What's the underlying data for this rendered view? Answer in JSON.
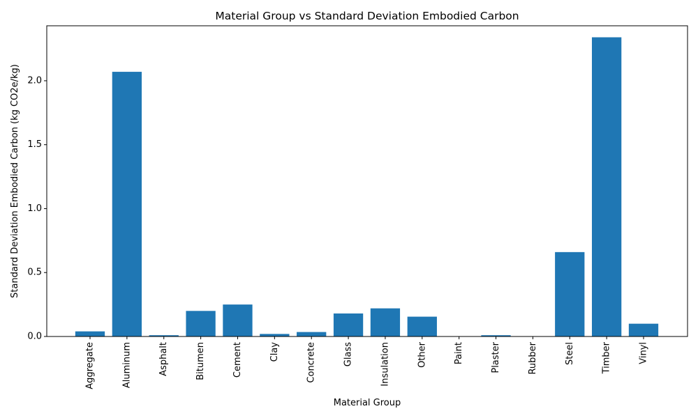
{
  "chart_data": {
    "type": "bar",
    "title": "Material Group vs Standard Deviation Embodied Carbon",
    "xlabel": "Material Group",
    "ylabel": "Standard Deviation Embodied Carbon (kg CO2e/kg)",
    "categories": [
      "Aggregate",
      "Aluminum",
      "Asphalt",
      "Bitumen",
      "Cement",
      "Clay",
      "Concrete",
      "Glass",
      "Insulation",
      "Other",
      "Paint",
      "Plaster",
      "Rubber",
      "Steel",
      "Timber",
      "Vinyl"
    ],
    "values": [
      0.04,
      2.07,
      0.01,
      0.2,
      0.25,
      0.02,
      0.035,
      0.18,
      0.22,
      0.155,
      0.0,
      0.01,
      0.0,
      0.66,
      2.34,
      0.1
    ],
    "ylim": [
      0,
      2.43
    ],
    "yticks": [
      0.0,
      0.5,
      1.0,
      1.5,
      2.0
    ],
    "ytick_labels": [
      "0.0",
      "0.5",
      "1.0",
      "1.5",
      "2.0"
    ],
    "bar_color": "#1f77b4",
    "grid": false,
    "legend": "none"
  }
}
